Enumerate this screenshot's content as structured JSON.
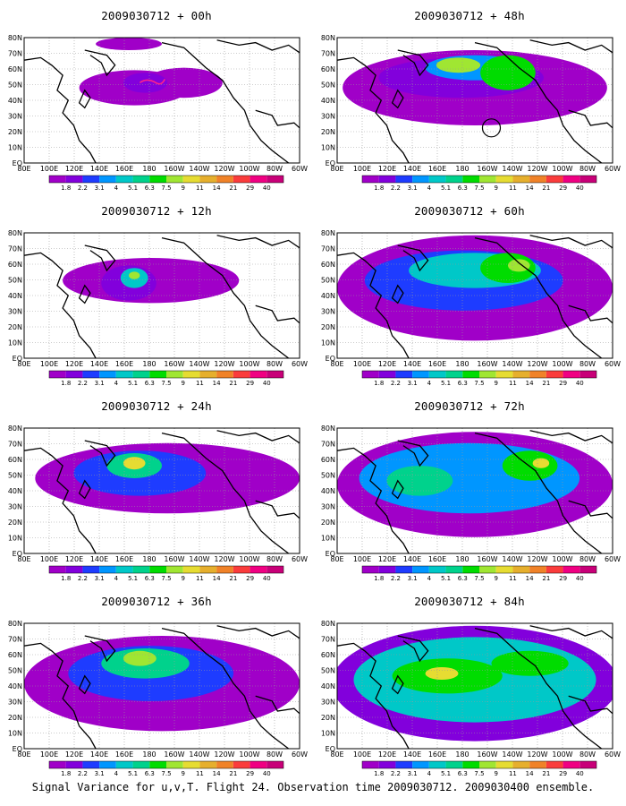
{
  "panels": [
    {
      "title": "2009030712 + 00h",
      "lead": "00h"
    },
    {
      "title": "2009030712 + 48h",
      "lead": "48h"
    },
    {
      "title": "2009030712 + 12h",
      "lead": "12h"
    },
    {
      "title": "2009030712 + 60h",
      "lead": "60h"
    },
    {
      "title": "2009030712 + 24h",
      "lead": "24h"
    },
    {
      "title": "2009030712 + 72h",
      "lead": "72h"
    },
    {
      "title": "2009030712 + 36h",
      "lead": "36h"
    },
    {
      "title": "2009030712 + 84h",
      "lead": "84h"
    }
  ],
  "axes": {
    "lon_labels": [
      "80E",
      "100E",
      "120E",
      "140E",
      "160E",
      "180",
      "160W",
      "140W",
      "120W",
      "100W",
      "80W",
      "60W"
    ],
    "lat_labels": [
      "80N",
      "70N",
      "60N",
      "50N",
      "40N",
      "30N",
      "20N",
      "10N",
      "EQ"
    ]
  },
  "colorbar": {
    "labels": [
      "1.8",
      "2.2",
      "3.1",
      "4",
      "5.1",
      "6.3",
      "7.5",
      "9",
      "11",
      "14",
      "21",
      "29",
      "40"
    ],
    "colors": [
      "#a000c8",
      "#8200dc",
      "#1e3cff",
      "#0096ff",
      "#00c8c8",
      "#00d28c",
      "#00dc00",
      "#a0e632",
      "#e6dc32",
      "#e6af2d",
      "#f08228",
      "#fa3c3c",
      "#f00082",
      "#c80078"
    ]
  },
  "caption": "Signal Variance for u,v,T. Flight 24. Observation time 2009030712. 2009030400 ensemble."
}
